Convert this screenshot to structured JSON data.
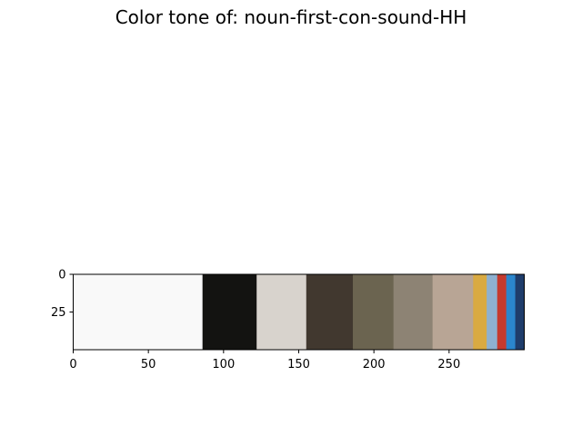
{
  "chart_data": {
    "type": "heatmap",
    "title": "Color tone of: noun-first-con-sound-HH",
    "xlabel": "",
    "ylabel": "",
    "xlim": [
      0,
      300
    ],
    "ylim": [
      50,
      0
    ],
    "xticks": [
      0,
      50,
      100,
      150,
      200,
      250
    ],
    "yticks": [
      0,
      25
    ],
    "segments": [
      {
        "start": 0,
        "end": 86,
        "color": "#f9f9f9"
      },
      {
        "start": 86,
        "end": 122,
        "color": "#131311"
      },
      {
        "start": 122,
        "end": 155,
        "color": "#d8d3cd"
      },
      {
        "start": 155,
        "end": 186,
        "color": "#41382f"
      },
      {
        "start": 186,
        "end": 213,
        "color": "#6b6450"
      },
      {
        "start": 213,
        "end": 239,
        "color": "#8d8374"
      },
      {
        "start": 239,
        "end": 266,
        "color": "#b8a595"
      },
      {
        "start": 266,
        "end": 275,
        "color": "#d9aa42"
      },
      {
        "start": 275,
        "end": 282,
        "color": "#8eb1d1"
      },
      {
        "start": 282,
        "end": 288,
        "color": "#c53a2e"
      },
      {
        "start": 288,
        "end": 294,
        "color": "#2b86cd"
      },
      {
        "start": 294,
        "end": 300,
        "color": "#1f3d6b"
      }
    ]
  }
}
